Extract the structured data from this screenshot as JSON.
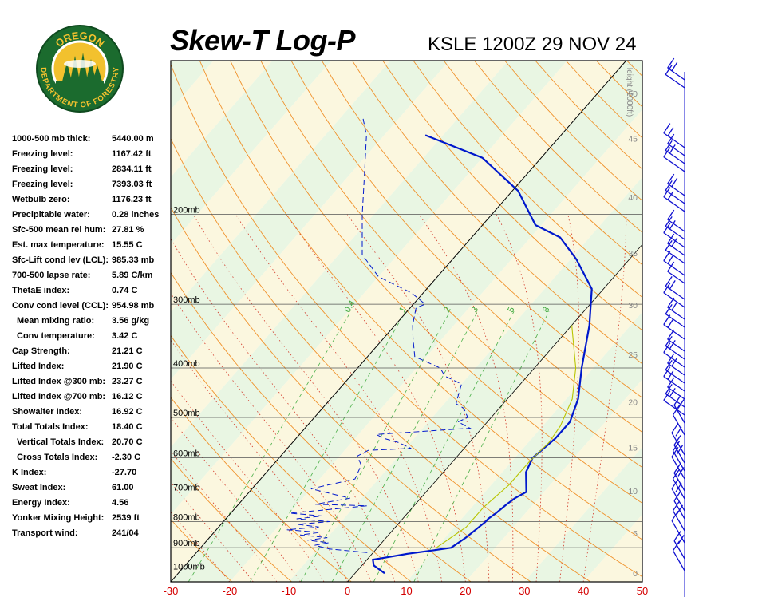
{
  "header": {
    "title": "Skew-T Log-P",
    "subtitle": "KSLE 1200Z 29 NOV 24"
  },
  "logo": {
    "top_text": "OREGON",
    "bottom_text": "DEPARTMENT OF FORESTRY",
    "colors": {
      "ring": "#1b6b2e",
      "ring_text": "#f2c12e",
      "sky": "#f2c12e",
      "trees": "#1b6b2e"
    }
  },
  "indices": [
    {
      "label": "1000-500 mb thick:",
      "value": "5440.00 m"
    },
    {
      "label": "Freezing level:",
      "value": "1167.42 ft"
    },
    {
      "label": "Freezing level:",
      "value": "2834.11 ft"
    },
    {
      "label": "Freezing level:",
      "value": "7393.03 ft"
    },
    {
      "label": "Wetbulb zero:",
      "value": "1176.23 ft"
    },
    {
      "label": "Precipitable water:",
      "value": "0.28 inches"
    },
    {
      "label": "Sfc-500 mean rel hum:",
      "value": "27.81 %"
    },
    {
      "label": "Est. max temperature:",
      "value": "15.55 C"
    },
    {
      "label": "Sfc-Lift cond lev (LCL):",
      "value": "985.33 mb"
    },
    {
      "label": "700-500 lapse rate:",
      "value": "5.89 C/km"
    },
    {
      "label": "ThetaE index:",
      "value": "0.74 C"
    },
    {
      "label": "Conv cond level (CCL):",
      "value": "954.98 mb"
    },
    {
      "label": "Mean mixing ratio:",
      "value": "3.56 g/kg",
      "indent": true
    },
    {
      "label": "Conv temperature:",
      "value": "3.42 C",
      "indent": true
    },
    {
      "label": "Cap Strength:",
      "value": "21.21 C"
    },
    {
      "label": "Lifted Index:",
      "value": "21.90 C"
    },
    {
      "label": "Lifted Index @300 mb:",
      "value": "23.27 C"
    },
    {
      "label": "Lifted Index @700 mb:",
      "value": "16.12 C"
    },
    {
      "label": "Showalter Index:",
      "value": "16.92 C"
    },
    {
      "label": "Total Totals Index:",
      "value": "18.40 C"
    },
    {
      "label": "Vertical Totals Index:",
      "value": "20.70 C",
      "indent": true
    },
    {
      "label": "Cross Totals Index:",
      "value": "-2.30 C",
      "indent": true
    },
    {
      "label": "K Index:",
      "value": "-27.70"
    },
    {
      "label": "Sweat Index:",
      "value": "61.00"
    },
    {
      "label": "Energy Index:",
      "value": "4.56"
    },
    {
      "label": "Yonker Mixing Height:",
      "value": "2539 ft"
    },
    {
      "label": "Transport wind:",
      "value": "241/04"
    }
  ],
  "chart_data": {
    "type": "line",
    "x_ticks": [
      -30,
      -20,
      -10,
      0,
      10,
      20,
      30,
      40,
      50
    ],
    "xlim": [
      -30,
      50
    ],
    "pressure_levels": [
      {
        "p": 1000,
        "label": "1000mb"
      },
      {
        "p": 900,
        "label": "900mb"
      },
      {
        "p": 800,
        "label": "800mb"
      },
      {
        "p": 700,
        "label": "700mb"
      },
      {
        "p": 600,
        "label": "600mb"
      },
      {
        "p": 500,
        "label": "500mb"
      },
      {
        "p": 400,
        "label": "400mb"
      },
      {
        "p": 300,
        "label": "300mb"
      },
      {
        "p": 200,
        "label": "200mb"
      }
    ],
    "height_axis": {
      "label": "Height (1000ft)",
      "ticks": [
        {
          "h": 0,
          "p": 1010
        },
        {
          "h": 5,
          "p": 843
        },
        {
          "h": 10,
          "p": 697
        },
        {
          "h": 15,
          "p": 572
        },
        {
          "h": 20,
          "p": 466
        },
        {
          "h": 25,
          "p": 376
        },
        {
          "h": 30,
          "p": 301
        },
        {
          "h": 35,
          "p": 238
        },
        {
          "h": 40,
          "p": 185
        },
        {
          "h": 45,
          "p": 142
        },
        {
          "h": 50,
          "p": 116
        }
      ]
    },
    "mixing_ratio_labels": [
      "0.4",
      "1",
      "2",
      "3",
      "5",
      "8"
    ],
    "series": [
      {
        "kind": "temperature",
        "color": "#0018cc",
        "points": [
          [
            5,
            1010
          ],
          [
            2,
            975
          ],
          [
            1,
            950
          ],
          [
            3,
            940
          ],
          [
            6,
            925
          ],
          [
            10,
            910
          ],
          [
            12.5,
            900
          ],
          [
            13.5,
            860
          ],
          [
            14,
            830
          ],
          [
            14.5,
            800
          ],
          [
            14.5,
            790
          ],
          [
            15,
            770
          ],
          [
            15.5,
            740
          ],
          [
            16,
            720
          ],
          [
            17,
            700
          ],
          [
            14,
            640
          ],
          [
            13,
            600
          ],
          [
            14,
            550
          ],
          [
            14,
            510
          ],
          [
            12,
            460
          ],
          [
            8,
            400
          ],
          [
            3,
            330
          ],
          [
            -2,
            280
          ],
          [
            -9,
            245
          ],
          [
            -15,
            222
          ],
          [
            -21,
            210
          ],
          [
            -29,
            180
          ],
          [
            -40,
            155
          ],
          [
            -53,
            140
          ]
        ]
      },
      {
        "kind": "dewpoint",
        "color": "#0018cc",
        "points": [
          [
            -1,
            920
          ],
          [
            -8,
            905
          ],
          [
            -11,
            890
          ],
          [
            -9,
            880
          ],
          [
            -13,
            870
          ],
          [
            -10,
            860
          ],
          [
            -15,
            850
          ],
          [
            -12,
            840
          ],
          [
            -18,
            830
          ],
          [
            -13,
            820
          ],
          [
            -17,
            810
          ],
          [
            -12,
            800
          ],
          [
            -18,
            790
          ],
          [
            -14,
            780
          ],
          [
            -20,
            770
          ],
          [
            -15,
            760
          ],
          [
            -8,
            745
          ],
          [
            -17,
            740
          ],
          [
            -12,
            720
          ],
          [
            -20,
            690
          ],
          [
            -14,
            660
          ],
          [
            -15,
            620
          ],
          [
            -17,
            595
          ],
          [
            -16,
            580
          ],
          [
            -9,
            575
          ],
          [
            -12,
            560
          ],
          [
            -15,
            550
          ],
          [
            -17,
            540
          ],
          [
            -2,
            525
          ],
          [
            -5,
            510
          ],
          [
            -4,
            500
          ],
          [
            -6,
            480
          ],
          [
            -8,
            470
          ],
          [
            -9,
            450
          ],
          [
            -10,
            430
          ],
          [
            -14,
            415
          ],
          [
            -16,
            400
          ],
          [
            -22,
            380
          ],
          [
            -25,
            350
          ],
          [
            -27,
            330
          ],
          [
            -29,
            305
          ],
          [
            -28,
            300
          ],
          [
            -32,
            285
          ],
          [
            -40,
            265
          ],
          [
            -46,
            240
          ],
          [
            -52,
            200
          ],
          [
            -57,
            170
          ],
          [
            -63,
            140
          ],
          [
            -66,
            130
          ]
        ]
      },
      {
        "kind": "parcel",
        "color": "#b8c400",
        "points": [
          [
            10,
            900
          ],
          [
            12,
            820
          ],
          [
            12,
            750
          ],
          [
            13,
            680
          ],
          [
            13,
            610
          ],
          [
            13.5,
            560
          ],
          [
            13,
            520
          ],
          [
            11,
            460
          ],
          [
            7,
            400
          ],
          [
            0,
            330
          ]
        ]
      }
    ]
  }
}
